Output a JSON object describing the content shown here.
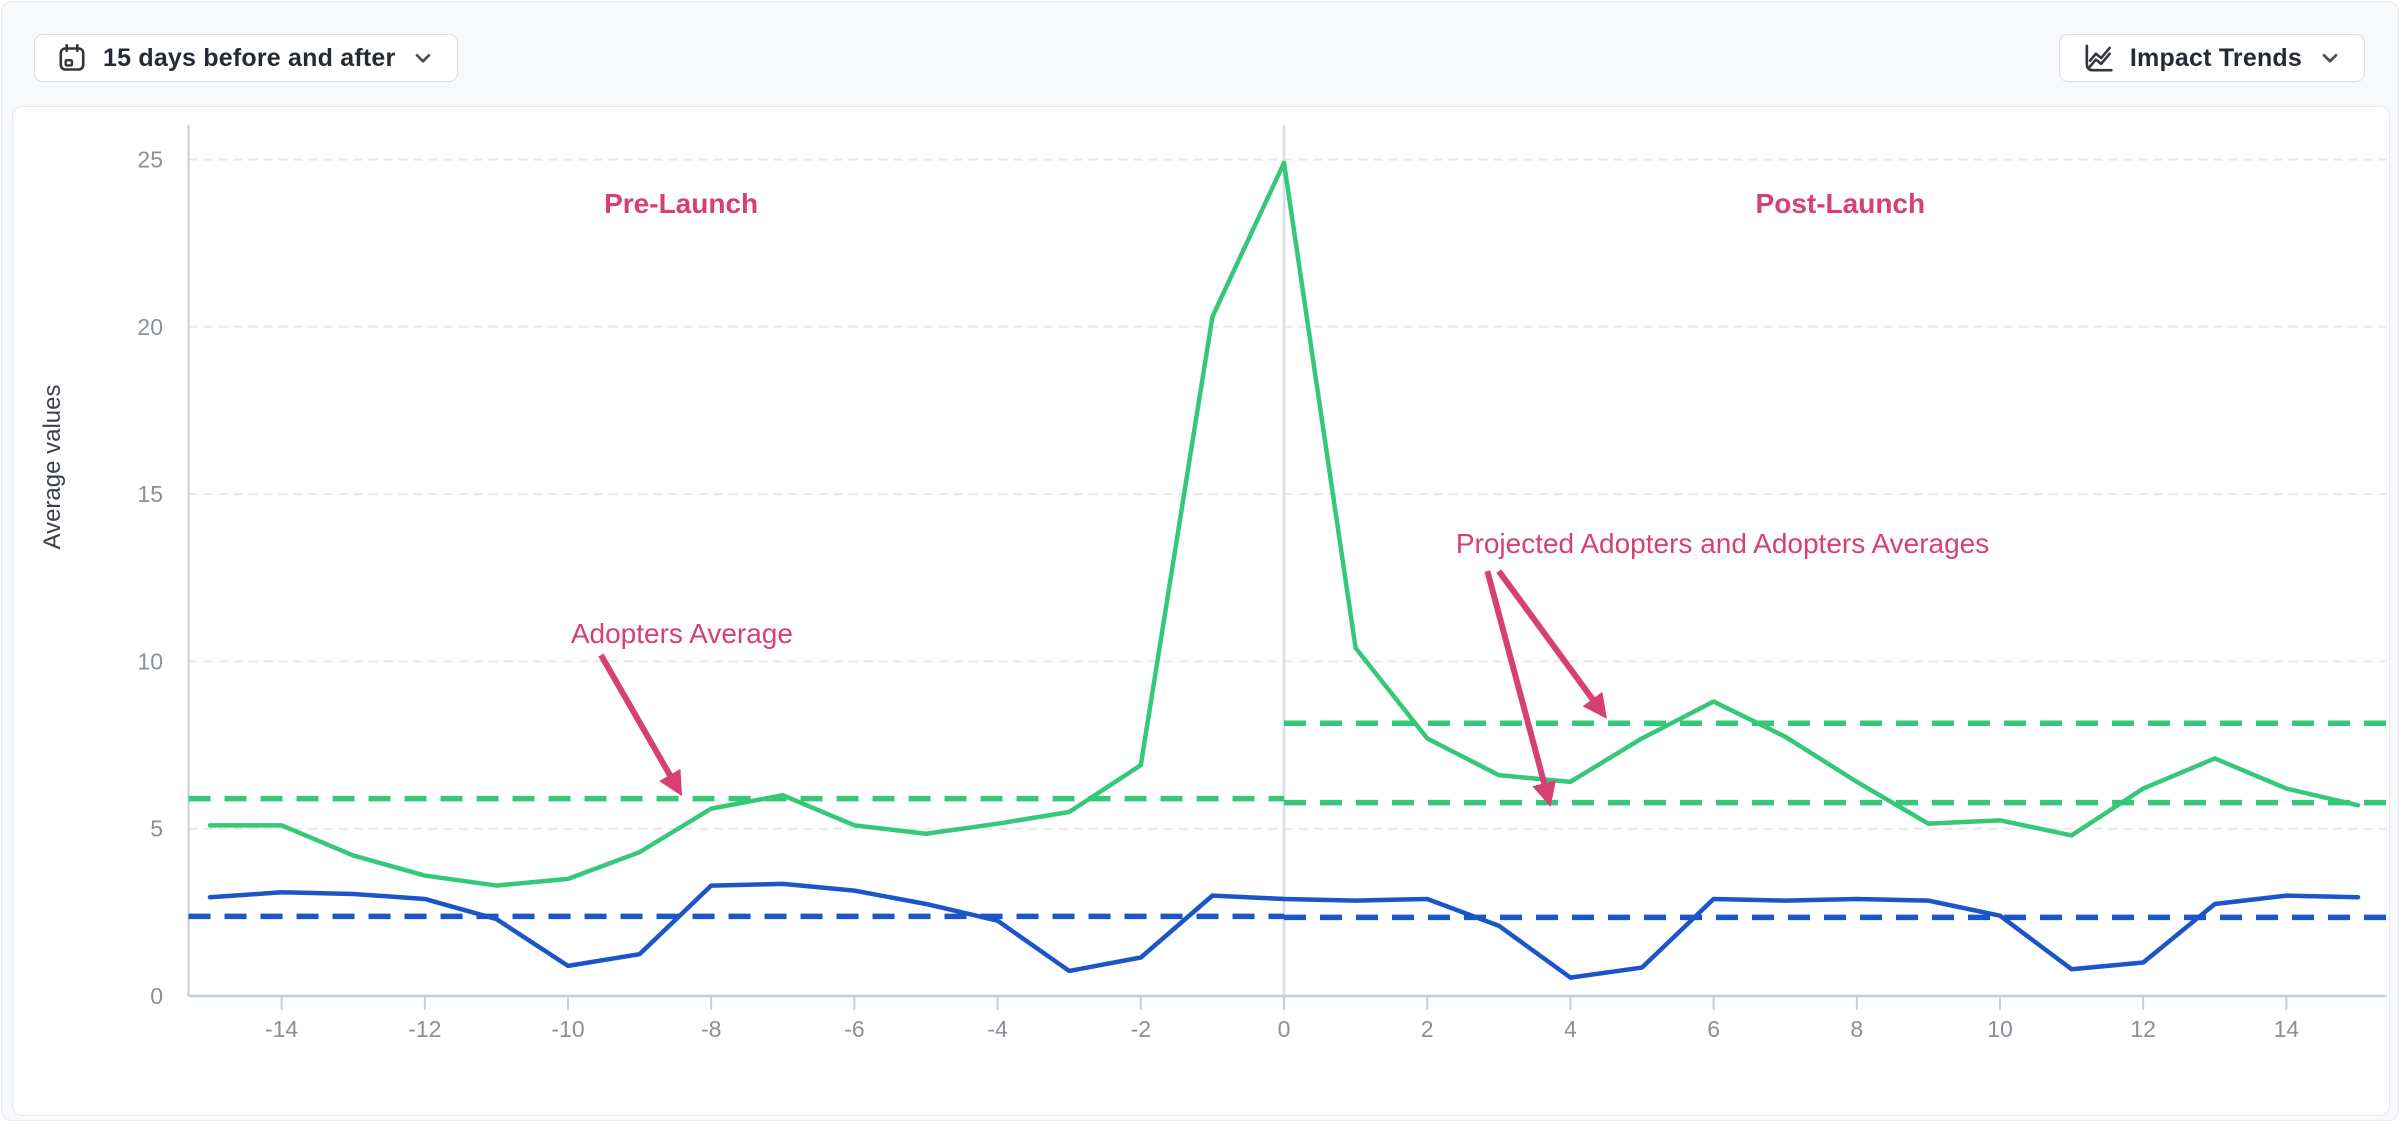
{
  "header": {
    "date_range_button": {
      "label": "15 days before and after",
      "icon": "calendar"
    },
    "trends_button": {
      "label": "Impact Trends",
      "icon": "trend-chart"
    }
  },
  "colors": {
    "green": "#35c878",
    "blue": "#1c55c7",
    "pink": "#d64073",
    "grid": "#e8e8e8",
    "axis": "#c3cedf",
    "divider": "#dadde2",
    "tick_label": "#8a9098",
    "ylabel_text": "#3c4148"
  },
  "chart_data": {
    "type": "line",
    "title": "",
    "xlabel": "",
    "ylabel": "Average values",
    "xlim": [
      -15.3,
      15.4
    ],
    "ylim": [
      0,
      26
    ],
    "grid": "horizontal-dashed",
    "legend": "none",
    "xticks": [
      -14,
      -12,
      -10,
      -8,
      -6,
      -4,
      -2,
      0,
      2,
      4,
      6,
      8,
      10,
      12,
      14
    ],
    "yticks": [
      0,
      5,
      10,
      15,
      20,
      25
    ],
    "launch_divider_x": 0,
    "x": [
      -15,
      -14,
      -13,
      -12,
      -11,
      -10,
      -9,
      -8,
      -7,
      -6,
      -5,
      -4,
      -3,
      -2,
      -1,
      0,
      1,
      2,
      3,
      4,
      5,
      6,
      7,
      8,
      9,
      10,
      11,
      12,
      13,
      14,
      15
    ],
    "series": [
      {
        "name": "adopters",
        "color_key": "green",
        "values": [
          5.1,
          5.1,
          4.2,
          3.6,
          3.3,
          3.5,
          4.3,
          5.6,
          6.0,
          5.1,
          4.85,
          5.15,
          5.5,
          6.9,
          20.3,
          24.9,
          10.4,
          7.7,
          6.6,
          6.4,
          7.7,
          8.8,
          7.75,
          6.4,
          5.15,
          5.25,
          4.8,
          6.2,
          7.1,
          6.2,
          5.7
        ]
      },
      {
        "name": "comparison",
        "color_key": "blue",
        "values": [
          2.95,
          3.1,
          3.05,
          2.9,
          2.3,
          0.9,
          1.25,
          3.3,
          3.35,
          3.15,
          2.75,
          2.25,
          0.75,
          1.15,
          3.0,
          2.9,
          2.85,
          2.9,
          2.1,
          0.55,
          0.85,
          2.9,
          2.85,
          2.9,
          2.85,
          2.4,
          0.8,
          1.0,
          2.75,
          3.0,
          2.95
        ]
      }
    ],
    "reference_lines": [
      {
        "name": "adopters-average-pre-launch",
        "value": 5.9,
        "x1": -15.3,
        "x2": 0,
        "color_key": "green"
      },
      {
        "name": "adopters-average-post-launch",
        "value": 8.15,
        "x1": 0,
        "x2": 15.4,
        "color_key": "green"
      },
      {
        "name": "projected-adopters-average-post-launch",
        "value": 5.78,
        "x1": 0,
        "x2": 15.4,
        "color_key": "green"
      },
      {
        "name": "comparison-average-pre-launch",
        "value": 2.38,
        "x1": -15.3,
        "x2": 0,
        "color_key": "blue"
      },
      {
        "name": "comparison-average-post-launch",
        "value": 2.35,
        "x1": 0,
        "x2": 15.4,
        "color_key": "blue"
      }
    ],
    "annotations": [
      {
        "id": "pre-launch-label",
        "text": "Pre-Launch",
        "bold": true,
        "x": -8.42,
        "y": 23.4,
        "anchor": "middle",
        "arrows": []
      },
      {
        "id": "post-launch-label",
        "text": "Post-Launch",
        "bold": true,
        "x": 7.77,
        "y": 23.4,
        "anchor": "middle",
        "arrows": []
      },
      {
        "id": "adopters-average-label",
        "text": "Adopters Average",
        "bold": false,
        "x": -9.96,
        "y": 10.55,
        "anchor": "start",
        "arrows": [
          {
            "from": [
              -9.54,
              10.19
            ],
            "to": [
              -8.45,
              6.13
            ]
          }
        ]
      },
      {
        "id": "projected-adopters-label",
        "text": "Projected Adopters and Adopters Averages",
        "bold": false,
        "x": 2.4,
        "y": 13.24,
        "anchor": "start",
        "arrows": [
          {
            "from": [
              2.84,
              12.7
            ],
            "to": [
              3.7,
              5.83
            ]
          },
          {
            "from": [
              3.0,
              12.7
            ],
            "to": [
              4.46,
              8.43
            ]
          }
        ]
      }
    ]
  }
}
